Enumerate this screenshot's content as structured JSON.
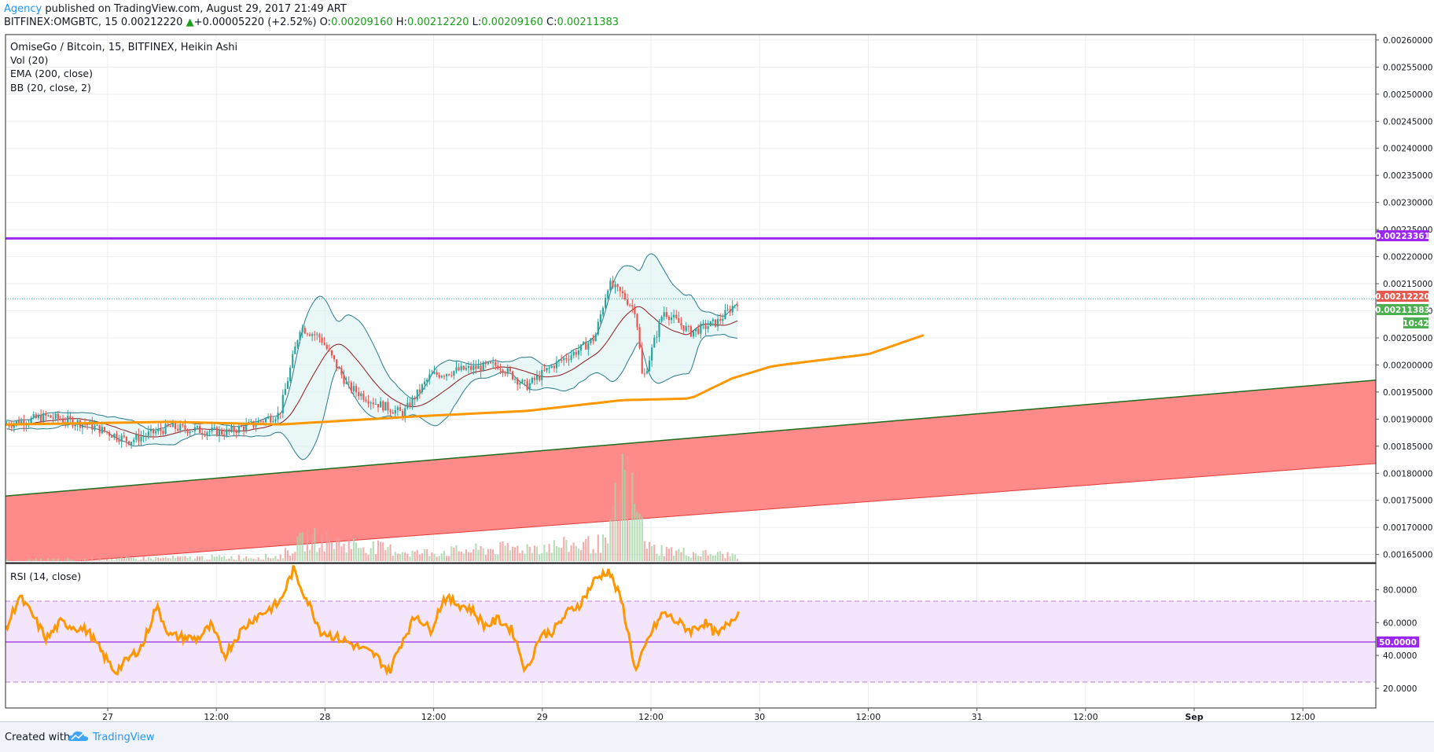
{
  "header": {
    "publisher": "Agency",
    "published_text": "published on TradingView.com, August 29, 2017 21:49 ART",
    "symbol": "BITFINEX:OMGBTC, 15",
    "last": "0.00212220",
    "change_arrow": "▲",
    "change": "+0.00005220 (+2.52%)",
    "o_label": "O:",
    "o_value": "0.00209160",
    "h_label": "H:",
    "h_value": "0.00212220",
    "l_label": "L:",
    "l_value": "0.00209160",
    "c_label": "C:",
    "c_value": "0.00211383"
  },
  "legend": {
    "title": "OmiseGo / Bitcoin, 15, BITFINEX, Heikin Ashi",
    "vol": "Vol (20)",
    "ema": "EMA (200, close)",
    "bb": "BB (20, close, 2)",
    "rsi": "RSI (14, close)"
  },
  "price_badges": {
    "level": "0.00223361",
    "last": "0.00212220",
    "close": "0.00211383",
    "countdown": "10:42"
  },
  "rsi_badge": "50.0000",
  "footer": {
    "created": "Created with",
    "brand": "TradingView"
  },
  "colors": {
    "candle_up": "#26a69a",
    "candle_down": "#ef5350",
    "ema": "#ff9800",
    "bollinger": "#2a7a8a",
    "bb_mid": "#8b1a1a",
    "level_line": "#9c27ee",
    "channel_fill": "#ff8a8a",
    "channel_top": "#1b6e1b",
    "channel_bottom": "#e53935",
    "rsi_line": "#ff9800",
    "rsi_band": "#f3e5fb"
  },
  "chart_data": [
    {
      "type": "candlestick",
      "title": "OmiseGo / Bitcoin, 15, BITFINEX, Heikin Ashi",
      "x_ticks": [
        "27",
        "12:00",
        "28",
        "12:00",
        "29",
        "12:00",
        "30",
        "12:00",
        "31",
        "12:00",
        "Sep",
        "12:00"
      ],
      "y_ticks": [
        "0.00260000",
        "0.00255000",
        "0.00250000",
        "0.00245000",
        "0.00240000",
        "0.00235000",
        "0.00230000",
        "0.00225000",
        "0.00220000",
        "0.00215000",
        "0.00210000",
        "0.00205000",
        "0.00200000",
        "0.00195000",
        "0.00190000",
        "0.00185000",
        "0.00180000",
        "0.00175000",
        "0.00170000",
        "0.00165000"
      ],
      "ylim": [
        0.001635,
        0.00261
      ],
      "horizontal_level": 0.00223361,
      "last_price": 0.0021222,
      "channel": {
        "top_line": [
          [
            0,
            0.001758
          ],
          [
            1,
            0.001972
          ]
        ],
        "bottom_line": [
          [
            0,
            0.001628
          ],
          [
            1,
            0.001818
          ]
        ]
      },
      "ema_200": [
        [
          0,
          0.00189
        ],
        [
          0.05,
          0.001892
        ],
        [
          0.12,
          0.001895
        ],
        [
          0.2,
          0.00189
        ],
        [
          0.3,
          0.001905
        ],
        [
          0.38,
          0.001915
        ],
        [
          0.45,
          0.001935
        ],
        [
          0.5,
          0.001938
        ],
        [
          0.53,
          0.001975
        ],
        [
          0.56,
          0.001998
        ],
        [
          0.63,
          0.00202
        ],
        [
          0.67,
          0.002055
        ]
      ],
      "price_path": [
        [
          0,
          0.00189
        ],
        [
          0.03,
          0.001905
        ],
        [
          0.06,
          0.00189
        ],
        [
          0.09,
          0.00186
        ],
        [
          0.12,
          0.001885
        ],
        [
          0.16,
          0.001875
        ],
        [
          0.18,
          0.00189
        ],
        [
          0.2,
          0.00191
        ],
        [
          0.215,
          0.00207
        ],
        [
          0.23,
          0.00205
        ],
        [
          0.25,
          0.00196
        ],
        [
          0.27,
          0.00193
        ],
        [
          0.29,
          0.00191
        ],
        [
          0.31,
          0.00198
        ],
        [
          0.33,
          0.00199
        ],
        [
          0.36,
          0.002
        ],
        [
          0.38,
          0.00196
        ],
        [
          0.4,
          0.002
        ],
        [
          0.42,
          0.00203
        ],
        [
          0.43,
          0.00205
        ],
        [
          0.44,
          0.00215
        ],
        [
          0.45,
          0.00213
        ],
        [
          0.46,
          0.0021
        ],
        [
          0.465,
          0.00197
        ],
        [
          0.48,
          0.0021
        ],
        [
          0.5,
          0.00206
        ],
        [
          0.52,
          0.00208
        ],
        [
          0.535,
          0.00212
        ]
      ],
      "volume": [
        [
          0,
          0.1
        ],
        [
          0.2,
          0.25
        ],
        [
          0.22,
          1.0
        ],
        [
          0.3,
          0.4
        ],
        [
          0.44,
          0.8
        ],
        [
          0.45,
          3.8
        ],
        [
          0.47,
          0.6
        ],
        [
          0.5,
          0.4
        ],
        [
          0.535,
          0.3
        ]
      ]
    },
    {
      "type": "line",
      "title": "RSI (14, close)",
      "y_ticks": [
        "80.0000",
        "60.0000",
        "40.0000",
        "20.0000"
      ],
      "ylim": [
        8,
        96
      ],
      "band": [
        25,
        75
      ],
      "midline": 50,
      "series": [
        {
          "values": [
            [
              0,
              55
            ],
            [
              0.01,
              76
            ],
            [
              0.02,
              64
            ],
            [
              0.03,
              50
            ],
            [
              0.04,
              60
            ],
            [
              0.06,
              55
            ],
            [
              0.07,
              42
            ],
            [
              0.08,
              30
            ],
            [
              0.09,
              38
            ],
            [
              0.1,
              46
            ],
            [
              0.11,
              70
            ],
            [
              0.12,
              52
            ],
            [
              0.14,
              50
            ],
            [
              0.15,
              58
            ],
            [
              0.16,
              40
            ],
            [
              0.17,
              53
            ],
            [
              0.18,
              62
            ],
            [
              0.2,
              72
            ],
            [
              0.21,
              92
            ],
            [
              0.22,
              74
            ],
            [
              0.23,
              55
            ],
            [
              0.25,
              48
            ],
            [
              0.27,
              40
            ],
            [
              0.28,
              30
            ],
            [
              0.29,
              50
            ],
            [
              0.3,
              65
            ],
            [
              0.31,
              55
            ],
            [
              0.32,
              75
            ],
            [
              0.34,
              68
            ],
            [
              0.35,
              58
            ],
            [
              0.36,
              62
            ],
            [
              0.37,
              55
            ],
            [
              0.38,
              30
            ],
            [
              0.39,
              52
            ],
            [
              0.4,
              55
            ],
            [
              0.41,
              66
            ],
            [
              0.42,
              72
            ],
            [
              0.43,
              86
            ],
            [
              0.44,
              92
            ],
            [
              0.45,
              72
            ],
            [
              0.46,
              30
            ],
            [
              0.47,
              52
            ],
            [
              0.48,
              66
            ],
            [
              0.5,
              55
            ],
            [
              0.51,
              60
            ],
            [
              0.52,
              52
            ],
            [
              0.535,
              67
            ]
          ]
        }
      ]
    }
  ]
}
